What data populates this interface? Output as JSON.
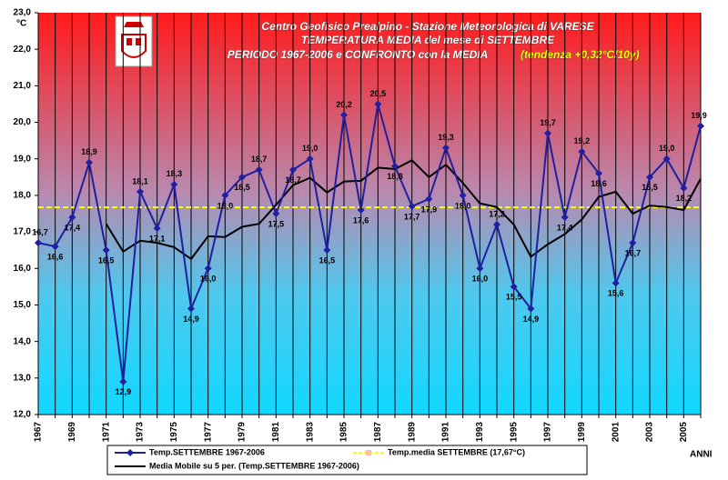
{
  "chart_data": {
    "type": "line",
    "title_lines": [
      "Centro Geofisico Prealpino - Stazione Meteorologica di VARESE",
      "TEMPERATURA MEDIA del mese di SETTEMBRE",
      "PERIODO 1967-2006 e CONFRONTO con la MEDIA"
    ],
    "trend_note": "(tendenza +0,32°C/10y)",
    "y_unit": "°C",
    "x_label": "ANNI",
    "categories": [
      "1967",
      null,
      "1969",
      null,
      "1971",
      null,
      "1973",
      null,
      "1975",
      null,
      "1977",
      null,
      "1979",
      null,
      "1981",
      null,
      "1983",
      null,
      "1985",
      null,
      "1987",
      null,
      "1989",
      null,
      "1991",
      null,
      "1993",
      null,
      "1995",
      null,
      "1997",
      null,
      "1999",
      null,
      "2001",
      null,
      "2003",
      null,
      "2005",
      null
    ],
    "series": [
      {
        "name": "Temp.SETTEMBRE 1967-2006",
        "color": "#1f1fa0",
        "values": [
          16.7,
          16.6,
          17.4,
          18.9,
          16.5,
          12.9,
          18.1,
          17.1,
          18.3,
          14.9,
          16.0,
          18.0,
          18.5,
          18.7,
          17.5,
          18.7,
          19.0,
          16.5,
          20.2,
          17.6,
          20.5,
          18.8,
          17.7,
          17.9,
          19.3,
          18.0,
          16.0,
          17.2,
          15.5,
          14.9,
          19.7,
          17.4,
          19.2,
          18.6,
          15.6,
          16.7,
          18.5,
          19.0,
          18.2,
          19.9
        ],
        "value_labels": [
          "16,7",
          "16,6",
          "17,4",
          "18,9",
          "16,5",
          "12,9",
          "18,1",
          "17,1",
          "18,3",
          "14,9",
          "16,0",
          "18,0",
          "18,5",
          "18,7",
          "17,5",
          "18,7",
          "19,0",
          "16,5",
          "20,2",
          "17,6",
          "20,5",
          "18,8",
          "17,7",
          "17,9",
          "19,3",
          "18,0",
          "16,0",
          "17,2",
          "15,5",
          "14,9",
          "19,7",
          "17,4",
          "19,2",
          "18,6",
          "15,6",
          "16,7",
          "18,5",
          "19,0",
          "18,2",
          "19,9"
        ]
      },
      {
        "name": "Media Mobile su 5 per. (Temp.SETTEMBRE 1967-2006)",
        "color": "#000000",
        "values": [
          null,
          null,
          null,
          null,
          17.22,
          16.46,
          16.76,
          16.7,
          16.58,
          16.26,
          16.88,
          16.86,
          17.14,
          17.22,
          17.74,
          18.28,
          18.48,
          18.08,
          18.38,
          18.4,
          18.76,
          18.72,
          18.96,
          18.5,
          18.84,
          18.34,
          17.78,
          17.68,
          17.2,
          16.32,
          16.66,
          16.94,
          17.34,
          17.96,
          18.1,
          17.5,
          17.72,
          17.68,
          17.6,
          18.46
        ]
      }
    ],
    "mean_line": {
      "name": "Temp.media SETTEMBRE (17,67°C)",
      "color": "#ffff00",
      "value": 17.67
    },
    "ylim": [
      12,
      23
    ],
    "yticks": [
      {
        "value": 12,
        "label": "12,0"
      },
      {
        "value": 13,
        "label": "13,0"
      },
      {
        "value": 14,
        "label": "14,0"
      },
      {
        "value": 15,
        "label": "15,0"
      },
      {
        "value": 16,
        "label": "16,0"
      },
      {
        "value": 17,
        "label": "17,0"
      },
      {
        "value": 18,
        "label": "18,0"
      },
      {
        "value": 19,
        "label": "19,0"
      },
      {
        "value": 20,
        "label": "20,0"
      },
      {
        "value": 21,
        "label": "21,0"
      },
      {
        "value": 22,
        "label": "22,0"
      },
      {
        "value": 23,
        "label": "23,0"
      }
    ],
    "grid": true
  }
}
